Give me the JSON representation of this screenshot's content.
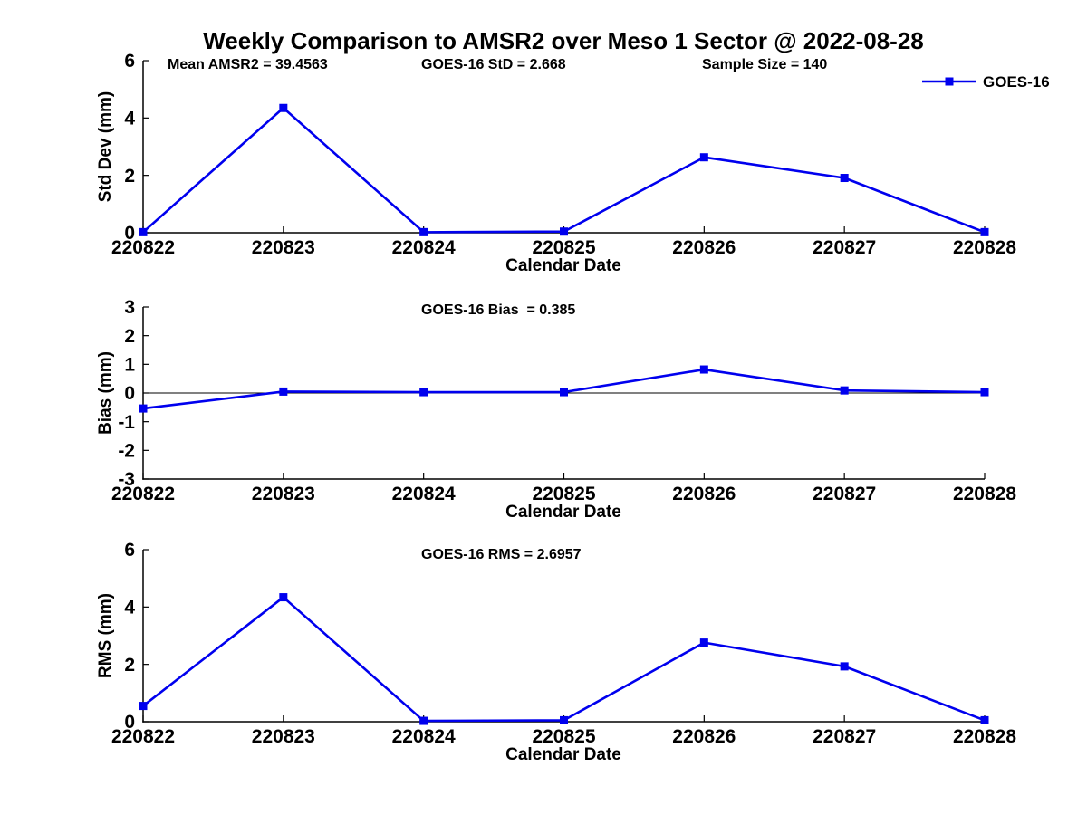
{
  "title": "Weekly Comparison to AMSR2 over Meso 1 Sector @ 2022-08-28",
  "colors": {
    "accent": "#0000EE",
    "text": "#000000",
    "background": "#FFFFFF"
  },
  "legend": {
    "label": "GOES-16",
    "marker": "filled-square",
    "position": "top-right"
  },
  "chart_data": [
    {
      "type": "line",
      "name": "std-dev-panel",
      "annotations": [
        "Mean AMSR2 = 39.4563",
        "GOES-16 StD = 2.668",
        "Sample Size = 140"
      ],
      "xlabel": "Calendar Date",
      "ylabel": "Std Dev (mm)",
      "categories": [
        "220822",
        "220823",
        "220824",
        "220825",
        "220826",
        "220827",
        "220828"
      ],
      "series": [
        {
          "name": "GOES-16",
          "values": [
            0.02,
            4.35,
            0.02,
            0.04,
            2.63,
            1.91,
            0.02
          ]
        }
      ],
      "ylim": [
        0,
        6
      ],
      "yticks": [
        0,
        2,
        4,
        6
      ],
      "zero_line": false,
      "grid": false,
      "legend_shown": true
    },
    {
      "type": "line",
      "name": "bias-panel",
      "annotations": [
        "GOES-16 Bias  = 0.385"
      ],
      "xlabel": "Calendar Date",
      "ylabel": "Bias (mm)",
      "categories": [
        "220822",
        "220823",
        "220824",
        "220825",
        "220826",
        "220827",
        "220828"
      ],
      "series": [
        {
          "name": "GOES-16",
          "values": [
            -0.54,
            0.05,
            0.03,
            0.03,
            0.82,
            0.09,
            0.03
          ]
        }
      ],
      "ylim": [
        -3,
        3
      ],
      "yticks": [
        -3,
        -2,
        -1,
        0,
        1,
        2,
        3
      ],
      "zero_line": true,
      "grid": false,
      "legend_shown": false
    },
    {
      "type": "line",
      "name": "rms-panel",
      "annotations": [
        "GOES-16 RMS = 2.6957"
      ],
      "xlabel": "Calendar Date",
      "ylabel": "RMS (mm)",
      "categories": [
        "220822",
        "220823",
        "220824",
        "220825",
        "220826",
        "220827",
        "220828"
      ],
      "series": [
        {
          "name": "GOES-16",
          "values": [
            0.55,
            4.34,
            0.03,
            0.05,
            2.76,
            1.93,
            0.05
          ]
        }
      ],
      "ylim": [
        0,
        6
      ],
      "yticks": [
        0,
        2,
        4,
        6
      ],
      "zero_line": false,
      "grid": false,
      "legend_shown": false
    }
  ]
}
